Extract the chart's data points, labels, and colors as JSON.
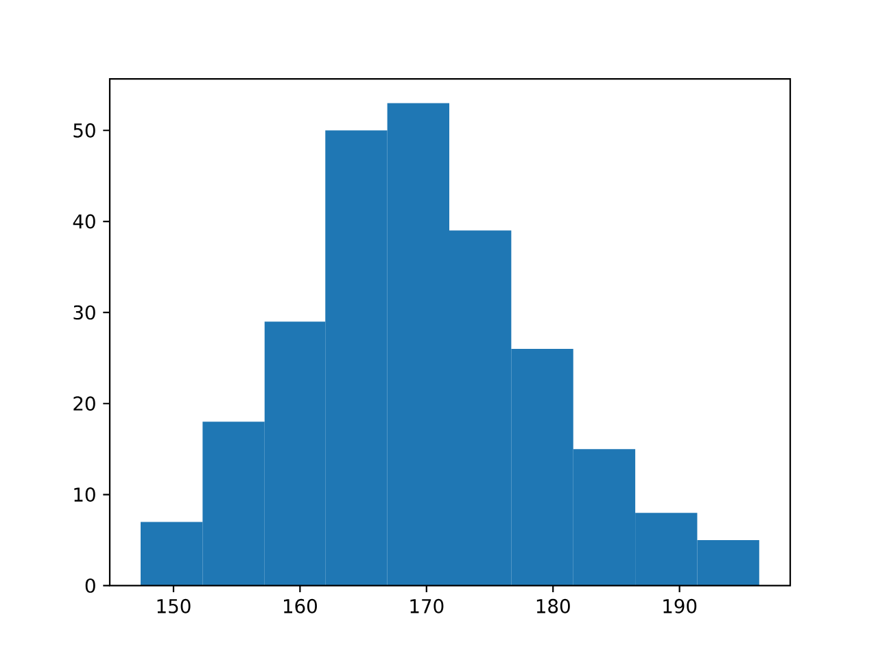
{
  "chart_data": {
    "type": "histogram",
    "bins": [
      147.4,
      152.3,
      157.2,
      162.0,
      166.9,
      171.8,
      176.7,
      181.6,
      186.5,
      191.4,
      196.3
    ],
    "values": [
      7,
      18,
      29,
      50,
      53,
      39,
      26,
      15,
      8,
      5
    ],
    "color": "#1f77b4",
    "xlim": [
      144.96,
      198.75
    ],
    "ylim": [
      0,
      55.65
    ],
    "xticks": [
      150,
      160,
      170,
      180,
      190
    ],
    "yticks": [
      0,
      10,
      20,
      30,
      40,
      50
    ]
  }
}
